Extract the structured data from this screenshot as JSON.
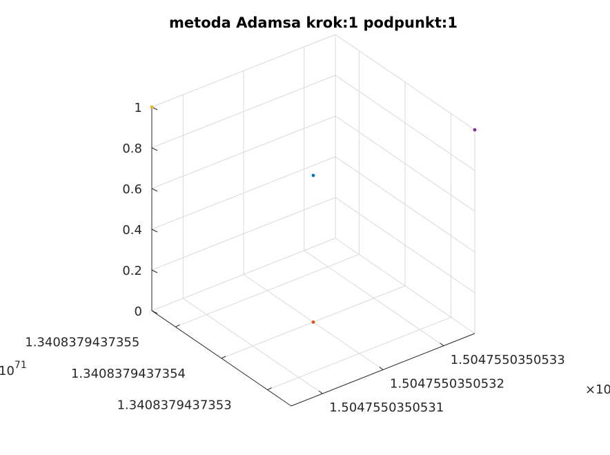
{
  "chart_data": {
    "type": "scatter",
    "title": "metoda Adamsa krok:1 podpunkt:1",
    "xlabel": "",
    "ylabel": "",
    "zlabel": "",
    "x_ticks": [
      "1.5047550350531",
      "1.5047550350532",
      "1.5047550350533"
    ],
    "x_exponent": "×10",
    "y_ticks": [
      "1.3408379437353",
      "1.3408379437354",
      "1.3408379437355"
    ],
    "y_exponent": "10",
    "y_exponent_power": "71",
    "z_ticks": [
      "0",
      "0.2",
      "0.4",
      "0.6",
      "0.8",
      "1"
    ],
    "zlim": [
      0,
      1
    ],
    "grid": true,
    "points": [
      {
        "color": "#0072BD",
        "z": 0.72
      },
      {
        "color": "#D95319",
        "z": 0.0
      },
      {
        "color": "#EDB120",
        "z": 1.0
      },
      {
        "color": "#7E2F8E",
        "z": 1.0
      }
    ]
  }
}
